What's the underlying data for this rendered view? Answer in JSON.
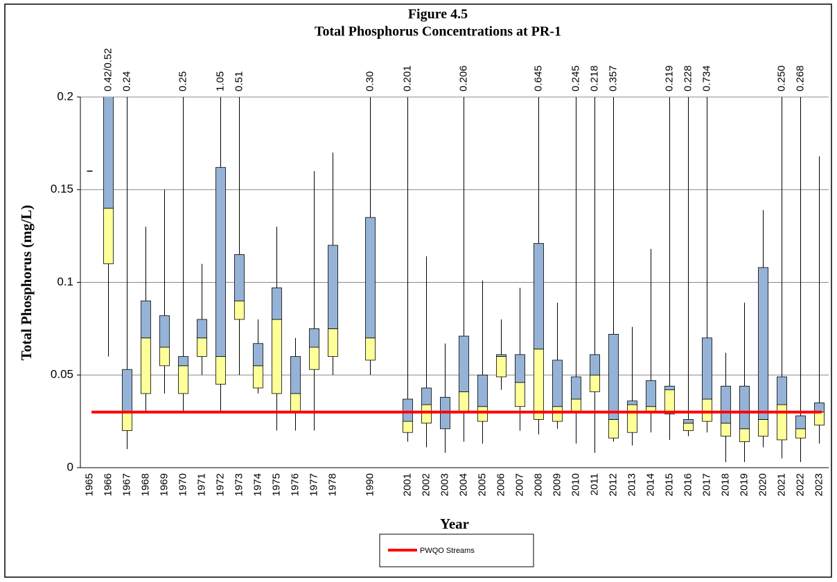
{
  "chart_data": {
    "type": "box",
    "title": "Figure 4.5",
    "subtitle": "Total Phosphorus Concentrations at PR-1",
    "x_label": "Year",
    "y_label": "Total Phosphorus (mg/L)",
    "categories": [
      "1965",
      "1966",
      "1967",
      "1968",
      "1969",
      "1970",
      "1971",
      "1972",
      "1973",
      "1974",
      "1975",
      "1976",
      "1977",
      "1978",
      null,
      "1990",
      null,
      "2001",
      "2002",
      "2003",
      "2004",
      "2005",
      "2006",
      "2007",
      "2008",
      "2009",
      "2010",
      "2011",
      "2012",
      "2013",
      "2014",
      "2015",
      "2016",
      "2017",
      "2018",
      "2019",
      "2020",
      "2021",
      "2022",
      "2023"
    ],
    "boxes": {
      "min": [
        0.16,
        0.06,
        0.01,
        0.03,
        0.04,
        0.03,
        0.05,
        0.03,
        0.05,
        0.04,
        0.02,
        0.02,
        0.02,
        0.05,
        null,
        0.05,
        null,
        0.014,
        0.011,
        0.008,
        0.014,
        0.013,
        0.042,
        0.02,
        0.018,
        0.021,
        0.013,
        0.008,
        0.014,
        0.012,
        0.019,
        0.015,
        0.017,
        0.019,
        0.003,
        0.003,
        0.011,
        0.005,
        0.003,
        0.013
      ],
      "q1": [
        0.16,
        0.11,
        0.02,
        0.04,
        0.055,
        0.04,
        0.06,
        0.045,
        0.08,
        0.043,
        0.04,
        0.03,
        0.053,
        0.06,
        null,
        0.058,
        null,
        0.019,
        0.024,
        0.021,
        0.03,
        0.025,
        0.049,
        0.033,
        0.026,
        0.025,
        0.03,
        0.041,
        0.016,
        0.019,
        0.03,
        0.029,
        0.02,
        0.025,
        0.017,
        0.014,
        0.017,
        0.015,
        0.016,
        0.023
      ],
      "median": [
        0.16,
        0.14,
        0.03,
        0.07,
        0.065,
        0.055,
        0.07,
        0.06,
        0.09,
        0.055,
        0.08,
        0.04,
        0.065,
        0.075,
        null,
        0.07,
        null,
        0.025,
        0.034,
        0.021,
        0.041,
        0.033,
        0.06,
        0.046,
        0.064,
        0.033,
        0.037,
        0.05,
        0.026,
        0.034,
        0.033,
        0.042,
        0.024,
        0.037,
        0.024,
        0.021,
        0.026,
        0.034,
        0.021,
        0.03
      ],
      "q3": [
        0.16,
        0.42,
        0.053,
        0.09,
        0.082,
        0.06,
        0.08,
        0.162,
        0.115,
        0.067,
        0.097,
        0.06,
        0.075,
        0.12,
        null,
        0.135,
        null,
        0.037,
        0.043,
        0.038,
        0.071,
        0.05,
        0.061,
        0.061,
        0.121,
        0.058,
        0.049,
        0.061,
        0.072,
        0.036,
        0.047,
        0.044,
        0.026,
        0.07,
        0.044,
        0.044,
        0.108,
        0.049,
        0.028,
        0.035
      ],
      "max": [
        0.16,
        0.52,
        0.24,
        0.13,
        0.15,
        0.25,
        0.11,
        1.05,
        0.51,
        0.08,
        0.13,
        0.07,
        0.16,
        0.17,
        null,
        0.3,
        null,
        0.201,
        0.114,
        0.067,
        0.206,
        0.101,
        0.08,
        0.097,
        0.645,
        0.089,
        0.245,
        0.218,
        0.357,
        0.076,
        0.118,
        0.219,
        0.228,
        0.734,
        0.062,
        0.089,
        0.139,
        0.25,
        0.268,
        0.168
      ],
      "max_labels": [
        null,
        "0.42/0.52",
        "0.24",
        null,
        null,
        "0.25",
        null,
        "1.05",
        "0.51",
        null,
        null,
        null,
        null,
        null,
        null,
        "0.30",
        null,
        "0.201",
        null,
        null,
        "0.206",
        null,
        null,
        null,
        "0.645",
        null,
        "0.245",
        "0.218",
        "0.357",
        null,
        null,
        "0.219",
        "0.228",
        "0.734",
        null,
        null,
        null,
        "0.250",
        "0.268",
        null
      ]
    },
    "lower_color": "#ffff99",
    "upper_color": "#95b3d7",
    "reference_line": {
      "name": "PWQO Streams",
      "value": 0.03,
      "color": "#ff0000"
    },
    "ylim": [
      0,
      0.2
    ],
    "yticks": [
      0,
      0.05,
      0.1,
      0.15,
      0.2
    ],
    "grid": true
  }
}
